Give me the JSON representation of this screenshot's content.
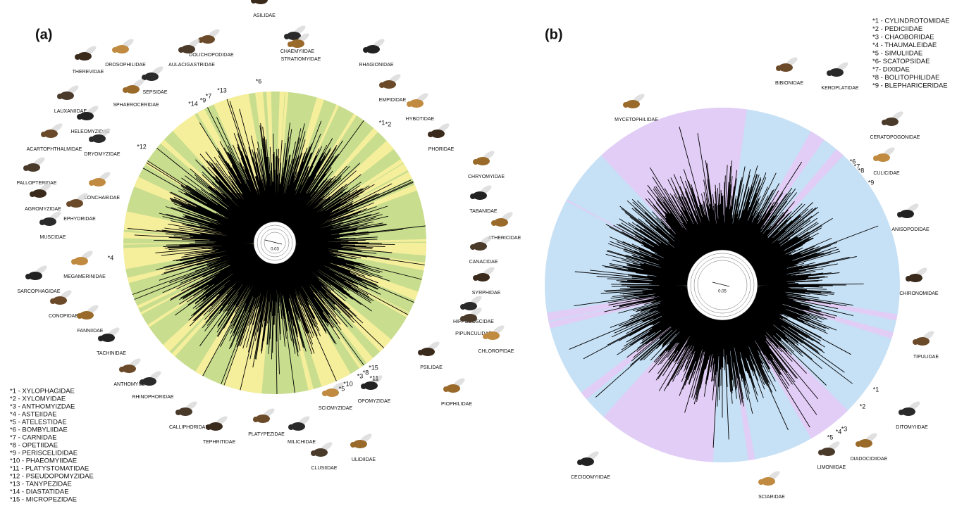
{
  "panels": [
    {
      "label": "(a)",
      "scale": "0.03",
      "families": [
        "ASILIDAE",
        "DOLICHOPODIDAE",
        "CHAEMYIIDAE",
        "STRATIOMYIDAE",
        "AULACIGASTRIDAE",
        "DROSOPHILIDAE",
        "RHAGIONIDAE",
        "THEREVIDAE",
        "EMPIDIDAE",
        "SEPSIDAE",
        "SPHAEROCERIDAE",
        "LAUXANIIDAE",
        "HYBOTIDAE",
        "HELEOMYZIDAE",
        "PHORIDAE",
        "ACARTOPHTHALMIDAE",
        "DRYOMYZIDAE",
        "CHRYOMYIDAE",
        "PALLOPTERIDAE",
        "LONCHAEIDAE",
        "TABANIDAE",
        "AGROMYZIDAE",
        "EPHYDRIDAE",
        "MUSCIDAE",
        "ATHERICIDAE",
        "CANACIDAE",
        "MEGAMERINIDAE",
        "SARCOPHAGIDAE",
        "SYRPHIDAE",
        "CONOPIDAE",
        "HIPPOBOSCIDAE",
        "FANNIIDAE",
        "PIPUNCULIDAE",
        "CHLOROPIDAE",
        "TACHINIDAE",
        "PSILIDAE",
        "ANTHOMYIIDAE",
        "RHINOPHORIDAE",
        "PIOPHILIDAE",
        "CALLIPHORIDAE",
        "SCIOMYZIDAE",
        "OPOMYZIDAE",
        "TEPHRITIDAE",
        "PLATYPEZIDAE",
        "MILICHIDAE",
        "ULIDIIDAE",
        "CLUSIIDAE"
      ],
      "asterisks": [
        "*6",
        "*13",
        "*14",
        "*9",
        "*7",
        "*1",
        "*2",
        "*12",
        "*4",
        "*10",
        "*5",
        "*3",
        "*8",
        "*15",
        "*11"
      ],
      "legend": [
        "*1 - XYLOPHAGIDAE",
        "*2 - XYLOMYIDAE",
        "*3 - ANTHOMYIZDAE",
        "*4 - ASTEIIDAE",
        "*5 - ATELESTIDAE",
        "*6 - BOMBYLIIDAE",
        "*7 - CARNIDAE",
        "*8 - OPETIIDAE",
        "*9 - PERISCELIDIDAE",
        "*10 - PHAEOMYIIDAE",
        "*11 - PLATYSTOMATIDAE",
        "*12 - PSEUDOPOMYZIDAE",
        "*13 - TANYPEZIDAE",
        "*14 - DIASTATIDAE",
        "*15 - MICROPEZIDAE"
      ]
    },
    {
      "label": "(b)",
      "scale": "0.05",
      "families": [
        "BIBIONIDAE",
        "KEROPLATIDAE",
        "MYCETOPHILIDAE",
        "CERATOPOGONIDAE",
        "CULICIDAE",
        "ANISOPODIDAE",
        "CHIRONOMIDAE",
        "TIPULIDAE",
        "DITOMYIIDAE",
        "DIADOCIDIIDAE",
        "LIMONIIDAE",
        "SCIARIDAE",
        "CECIDOMYIIDAE"
      ],
      "asterisks": [
        "*6",
        "*7",
        "*8",
        "*9",
        "*1",
        "*2",
        "*3",
        "*4",
        "*5"
      ],
      "legend": [
        "*1 - CYLINDROTOMIDAE",
        "*2 - PEDICIIDAE",
        "*3 - CHAOBORIDAE",
        "*4 - THAUMALEIDAE",
        "*5 - SIMULIIDAE",
        "*6- SCATOPSIDAE",
        "*7- DIXIDAE",
        "*8 - BOLITOPHILIDAE",
        "*9 - BLEPHARICERIDAE"
      ]
    }
  ]
}
